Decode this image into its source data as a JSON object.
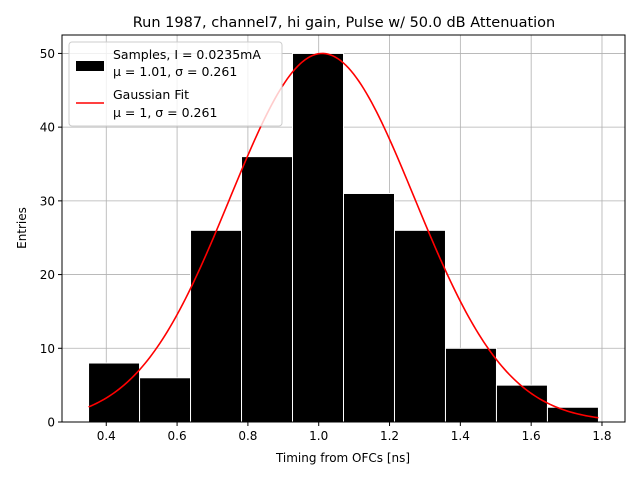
{
  "chart_data": {
    "type": "bar",
    "title": "Run 1987, channel7, hi gain, Pulse w/ 50.0 dB Attenuation",
    "xlabel": "Timing from OFCs [ns]",
    "ylabel": "Entries",
    "xlim": [
      0.275,
      1.865
    ],
    "ylim": [
      0,
      52.5
    ],
    "grid": true,
    "legend_position": "top-left",
    "xticks": [
      0.4,
      0.6,
      0.8,
      1.0,
      1.2,
      1.4,
      1.6,
      1.8
    ],
    "xtick_labels": [
      "0.4",
      "0.6",
      "0.8",
      "1.0",
      "1.2",
      "1.4",
      "1.6",
      "1.8"
    ],
    "yticks": [
      0,
      10,
      20,
      30,
      40,
      50
    ],
    "ytick_labels": [
      "0",
      "10",
      "20",
      "30",
      "40",
      "50"
    ],
    "bins": [
      {
        "start": 0.35,
        "end": 0.494,
        "count": 8
      },
      {
        "start": 0.494,
        "end": 0.638,
        "count": 6
      },
      {
        "start": 0.638,
        "end": 0.782,
        "count": 26
      },
      {
        "start": 0.782,
        "end": 0.926,
        "count": 36
      },
      {
        "start": 0.926,
        "end": 1.07,
        "count": 50
      },
      {
        "start": 1.07,
        "end": 1.214,
        "count": 31
      },
      {
        "start": 1.214,
        "end": 1.358,
        "count": 26
      },
      {
        "start": 1.358,
        "end": 1.502,
        "count": 10
      },
      {
        "start": 1.502,
        "end": 1.646,
        "count": 5
      },
      {
        "start": 1.646,
        "end": 1.79,
        "count": 2
      }
    ],
    "fit": {
      "mu": 1.01,
      "sigma": 0.261,
      "amplitude": 50,
      "x_range": [
        0.35,
        1.79
      ]
    },
    "bar_color": "#000000",
    "fit_color": "#ff0000",
    "legend": [
      {
        "kind": "patch",
        "color": "#000000",
        "line1": "Samples, I = 0.0235mA",
        "line2": "μ = 1.01, σ = 0.261"
      },
      {
        "kind": "line",
        "color": "#ff0000",
        "line1": "Gaussian Fit",
        "line2": "μ = 1, σ = 0.261"
      }
    ]
  }
}
